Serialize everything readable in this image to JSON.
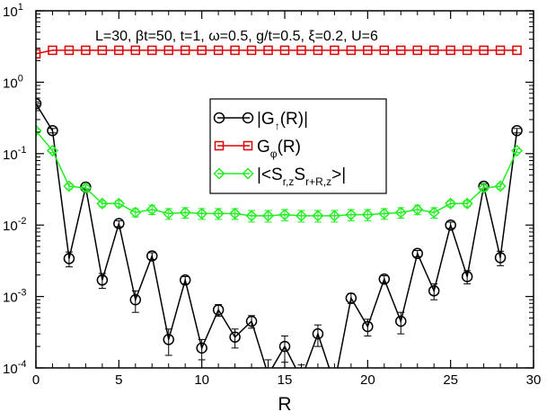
{
  "chart_data": {
    "type": "scatter",
    "annotation": "L=30, βt=50, t=1, ω=0.5, g/t=0.5, ξ=0.2, U=6",
    "xlabel": "R",
    "ylabel": "",
    "xlim": [
      0,
      30
    ],
    "ylim": [
      0.0001,
      10
    ],
    "yscale": "log",
    "x_ticks": [
      0,
      5,
      10,
      15,
      20,
      25,
      30
    ],
    "x_tick_labels": [
      "0",
      "5",
      "10",
      "15",
      "20",
      "25",
      "30"
    ],
    "y_ticks": [
      0.0001,
      0.001,
      0.01,
      0.1,
      1,
      10
    ],
    "y_tick_labels": [
      {
        "base": "10",
        "exp": "-4"
      },
      {
        "base": "10",
        "exp": "-3"
      },
      {
        "base": "10",
        "exp": "-2"
      },
      {
        "base": "10",
        "exp": "-1"
      },
      {
        "base": "10",
        "exp": "0"
      },
      {
        "base": "10",
        "exp": "1"
      }
    ],
    "grid": false,
    "legend_position": "center",
    "series": [
      {
        "name": {
          "pre": "|G",
          "sub": "↑",
          "post": "(R)|"
        },
        "marker": "circle",
        "color": "#000000",
        "x": [
          0,
          1,
          2,
          3,
          4,
          5,
          6,
          7,
          8,
          9,
          10,
          11,
          12,
          13,
          14,
          15,
          16,
          17,
          18,
          19,
          20,
          21,
          22,
          23,
          24,
          25,
          26,
          27,
          28,
          29
        ],
        "y": [
          0.5,
          0.21,
          0.0034,
          0.034,
          0.0017,
          0.0105,
          0.0009,
          0.0037,
          0.00025,
          0.0017,
          0.00019,
          0.00065,
          0.00027,
          0.00045,
          8e-05,
          0.0002,
          7e-05,
          0.0003,
          6e-05,
          0.00095,
          0.00038,
          0.00175,
          0.00045,
          0.004,
          0.0012,
          0.01,
          0.0019,
          0.035,
          0.0035,
          0.21
        ],
        "yerr": [
          0.03,
          0.015,
          0.0008,
          0.002,
          0.0004,
          0.001,
          0.0003,
          0.0004,
          0.0001,
          0.0002,
          6e-05,
          0.00012,
          8e-05,
          9e-05,
          5e-05,
          8e-05,
          4e-05,
          0.0001,
          4e-05,
          0.00015,
          0.0001,
          0.0002,
          0.00015,
          0.0004,
          0.0003,
          0.001,
          0.0004,
          0.003,
          0.0008,
          0.015
        ]
      },
      {
        "name": {
          "pre": "G",
          "sub": "φ",
          "post": "(R)"
        },
        "marker": "square",
        "color": "#dd0000",
        "x": [
          0,
          1,
          2,
          3,
          4,
          5,
          6,
          7,
          8,
          9,
          10,
          11,
          12,
          13,
          14,
          15,
          16,
          17,
          18,
          19,
          20,
          21,
          22,
          23,
          24,
          25,
          26,
          27,
          28,
          29
        ],
        "y": [
          2.5,
          2.8,
          2.8,
          2.8,
          2.8,
          2.8,
          2.8,
          2.8,
          2.8,
          2.8,
          2.8,
          2.8,
          2.8,
          2.8,
          2.8,
          2.8,
          2.8,
          2.8,
          2.8,
          2.8,
          2.8,
          2.8,
          2.8,
          2.8,
          2.8,
          2.8,
          2.8,
          2.8,
          2.8,
          2.8
        ]
      },
      {
        "name": {
          "pre": "|<S",
          "sub": "r,z",
          "mid": "S",
          "sub2": "r+R,z",
          "post": ">|"
        },
        "marker": "diamond",
        "color": "#22ee22",
        "x": [
          0,
          1,
          2,
          3,
          4,
          5,
          6,
          7,
          8,
          9,
          10,
          11,
          12,
          13,
          14,
          15,
          16,
          17,
          18,
          19,
          20,
          21,
          22,
          23,
          24,
          25,
          26,
          27,
          28,
          29
        ],
        "y": [
          0.21,
          0.11,
          0.035,
          0.033,
          0.02,
          0.02,
          0.015,
          0.0165,
          0.0145,
          0.015,
          0.0145,
          0.0145,
          0.0145,
          0.0135,
          0.0135,
          0.014,
          0.0135,
          0.0135,
          0.0135,
          0.014,
          0.014,
          0.0145,
          0.015,
          0.0165,
          0.015,
          0.02,
          0.02,
          0.033,
          0.035,
          0.11
        ],
        "yerr": [
          0.01,
          0.006,
          0.003,
          0.003,
          0.002,
          0.002,
          0.002,
          0.0025,
          0.0025,
          0.0025,
          0.0025,
          0.0025,
          0.0025,
          0.0025,
          0.0025,
          0.0025,
          0.0025,
          0.0025,
          0.0025,
          0.0025,
          0.0025,
          0.0025,
          0.0025,
          0.0025,
          0.0025,
          0.002,
          0.002,
          0.003,
          0.003,
          0.006
        ]
      }
    ]
  }
}
